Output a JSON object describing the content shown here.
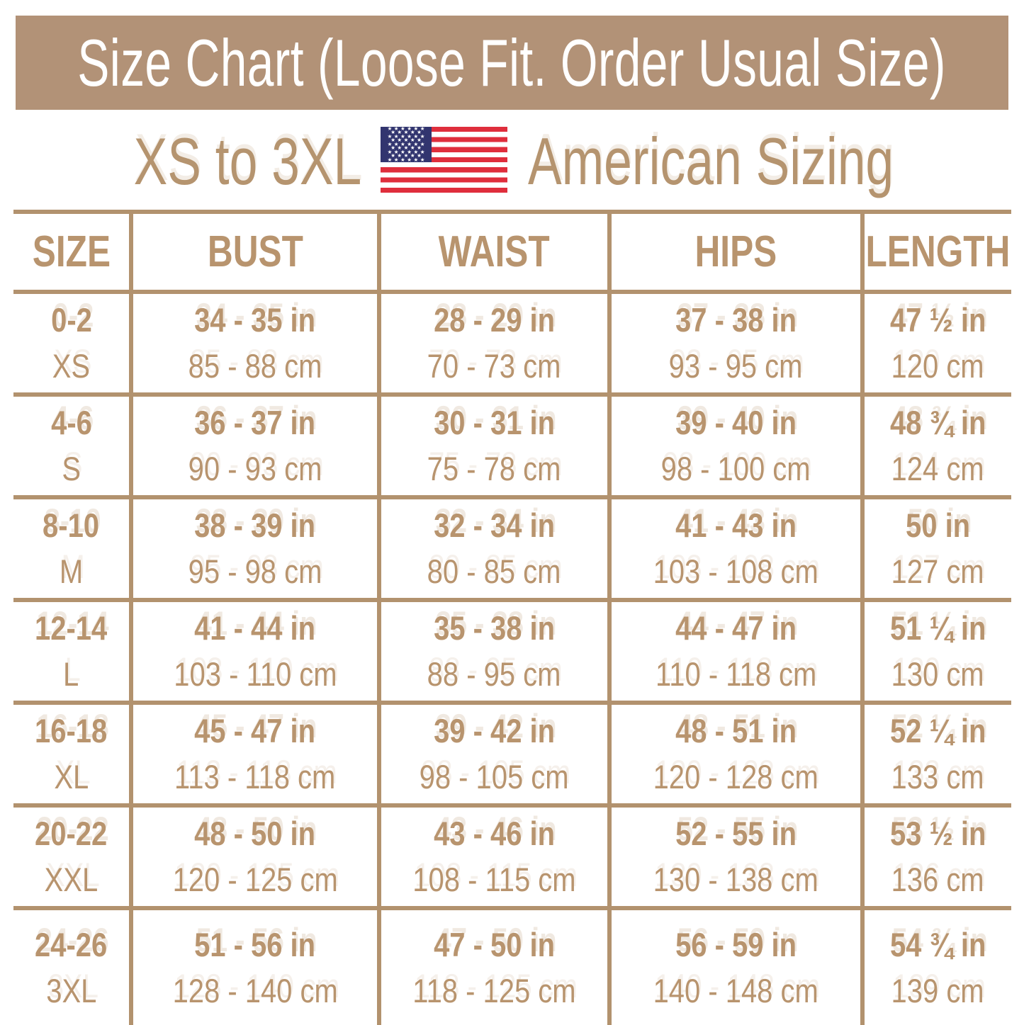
{
  "banner": {
    "title": "Size Chart (Loose Fit. Order Usual Size)",
    "background": "#b29277",
    "text_color": "#ffffff"
  },
  "subtitle": {
    "range_text": "XS to 3XL",
    "sizing_text": "American Sizing",
    "flag_icon": "us-flag-icon",
    "text_color": "#b5946f"
  },
  "flag": {
    "red": "#df2e3c",
    "blue": "#32356f",
    "white": "#ffffff",
    "star_rows": [
      6,
      5,
      6,
      5,
      6,
      5,
      6,
      5,
      6
    ]
  },
  "table": {
    "line_color": "#b2926e",
    "text_color": "#b8946e",
    "headers": [
      "SIZE",
      "BUST",
      "WAIST",
      "HIPS",
      "LENGTH"
    ],
    "rows": [
      {
        "size": "0-2",
        "size_label": "XS",
        "bust_in": "34 - 35 in",
        "bust_cm": "85 - 88 cm",
        "waist_in": "28 - 29 in",
        "waist_cm": "70 - 73 cm",
        "hips_in": "37 - 38 in",
        "hips_cm": "93 - 95 cm",
        "length_in": "47 ½ in",
        "length_cm": "120 cm"
      },
      {
        "size": "4-6",
        "size_label": "S",
        "bust_in": "36 - 37 in",
        "bust_cm": "90 - 93 cm",
        "waist_in": "30 - 31 in",
        "waist_cm": "75 - 78 cm",
        "hips_in": "39 - 40 in",
        "hips_cm": "98 - 100 cm",
        "length_in": "48 ¾ in",
        "length_cm": "124 cm"
      },
      {
        "size": "8-10",
        "size_label": "M",
        "bust_in": "38 - 39 in",
        "bust_cm": "95 - 98 cm",
        "waist_in": "32 - 34 in",
        "waist_cm": "80 - 85 cm",
        "hips_in": "41 - 43 in",
        "hips_cm": "103 - 108 cm",
        "length_in": "50 in",
        "length_cm": "127 cm"
      },
      {
        "size": "12-14",
        "size_label": "L",
        "bust_in": "41 - 44 in",
        "bust_cm": "103 - 110 cm",
        "waist_in": "35 - 38 in",
        "waist_cm": "88 - 95 cm",
        "hips_in": "44 - 47 in",
        "hips_cm": "110 - 118 cm",
        "length_in": "51 ¼ in",
        "length_cm": "130 cm"
      },
      {
        "size": "16-18",
        "size_label": "XL",
        "bust_in": "45 - 47 in",
        "bust_cm": "113 - 118 cm",
        "waist_in": "39 - 42 in",
        "waist_cm": "98 - 105 cm",
        "hips_in": "48 - 51 in",
        "hips_cm": "120 - 128 cm",
        "length_in": "52 ¼ in",
        "length_cm": "133 cm"
      },
      {
        "size": "20-22",
        "size_label": "XXL",
        "bust_in": "48 - 50 in",
        "bust_cm": "120 - 125 cm",
        "waist_in": "43 - 46 in",
        "waist_cm": "108 - 115 cm",
        "hips_in": "52 - 55 in",
        "hips_cm": "130 - 138 cm",
        "length_in": "53 ½ in",
        "length_cm": "136 cm"
      },
      {
        "size": "24-26",
        "size_label": "3XL",
        "bust_in": "51 - 56 in",
        "bust_cm": "128 - 140 cm",
        "waist_in": "47 - 50 in",
        "waist_cm": "118 - 125 cm",
        "hips_in": "56 - 59 in",
        "hips_cm": "140 - 148 cm",
        "length_in": "54 ¾ in",
        "length_cm": "139 cm"
      }
    ]
  }
}
